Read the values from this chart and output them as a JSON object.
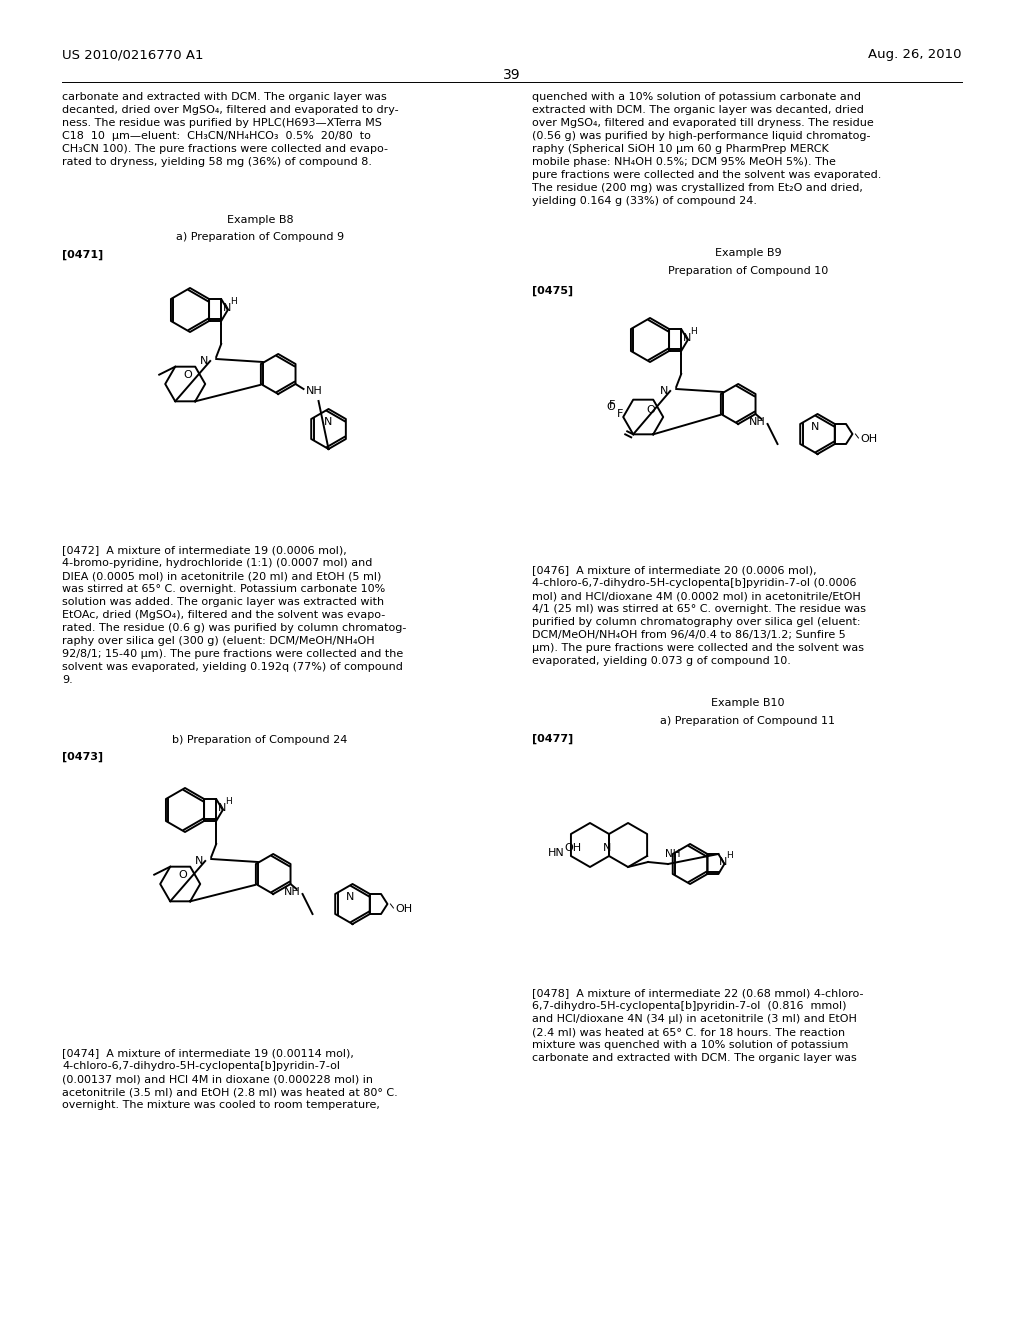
{
  "page_number": "39",
  "patent_number": "US 2010/0216770 A1",
  "patent_date": "Aug. 26, 2010",
  "background_color": "#ffffff",
  "text_color": "#000000",
  "left_col_top_text": "carbonate and extracted with DCM. The organic layer was\ndecanted, dried over MgSO₄, filtered and evaporated to dry-\nness. The residue was purified by HPLC(H693—XTerra MS\nC18  10  μm—eluent:  CH₃CN/NH₄HCO₃  0.5%  20/80  to\nCH₃CN 100). The pure fractions were collected and evapo-\nrated to dryness, yielding 58 mg (36%) of compound 8.",
  "left_example_b8": "Example B8",
  "left_prep_9": "a) Preparation of Compound 9",
  "left_ref_471": "[0471]",
  "left_para_472": "[0472]  A mixture of intermediate 19 (0.0006 mol),\n4-bromo-pyridine, hydrochloride (1:1) (0.0007 mol) and\nDIEA (0.0005 mol) in acetonitrile (20 ml) and EtOH (5 ml)\nwas stirred at 65° C. overnight. Potassium carbonate 10%\nsolution was added. The organic layer was extracted with\nEtOAc, dried (MgSO₄), filtered and the solvent was evapo-\nrated. The residue (0.6 g) was purified by column chromatog-\nraphy over silica gel (300 g) (eluent: DCM/MeOH/NH₄OH\n92/8/1; 15-40 μm). The pure fractions were collected and the\nsolvent was evaporated, yielding 0.192q (77%) of compound\n9.",
  "left_prep_24": "b) Preparation of Compound 24",
  "left_ref_473": "[0473]",
  "left_para_474": "[0474]  A mixture of intermediate 19 (0.00114 mol),\n4-chloro-6,7-dihydro-5H-cyclopenta[b]pyridin-7-ol\n(0.00137 mol) and HCl 4M in dioxane (0.000228 mol) in\nacetonitrile (3.5 ml) and EtOH (2.8 ml) was heated at 80° C.\novernight. The mixture was cooled to room temperature,",
  "right_col_top_text": "quenched with a 10% solution of potassium carbonate and\nextracted with DCM. The organic layer was decanted, dried\nover MgSO₄, filtered and evaporated till dryness. The residue\n(0.56 g) was purified by high-performance liquid chromatog-\nraphy (Spherical SiOH 10 μm 60 g PharmPrep MERCK\nmobile phase: NH₄OH 0.5%; DCM 95% MeOH 5%). The\npure fractions were collected and the solvent was evaporated.\nThe residue (200 mg) was crystallized from Et₂O and dried,\nyielding 0.164 g (33%) of compound 24.",
  "right_example_b9": "Example B9",
  "right_prep_10": "Preparation of Compound 10",
  "right_ref_475": "[0475]",
  "right_para_476": "[0476]  A mixture of intermediate 20 (0.0006 mol),\n4-chloro-6,7-dihydro-5H-cyclopenta[b]pyridin-7-ol (0.0006\nmol) and HCl/dioxane 4M (0.0002 mol) in acetonitrile/EtOH\n4/1 (25 ml) was stirred at 65° C. overnight. The residue was\npurified by column chromatography over silica gel (eluent:\nDCM/MeOH/NH₄OH from 96/4/0.4 to 86/13/1.2; Sunfire 5\nμm). The pure fractions were collected and the solvent was\nevaporated, yielding 0.073 g of compound 10.",
  "right_example_b10": "Example B10",
  "right_prep_11": "a) Preparation of Compound 11",
  "right_ref_477": "[0477]",
  "right_para_478": "[0478]  A mixture of intermediate 22 (0.68 mmol) 4-chloro-\n6,7-dihydro-5H-cyclopenta[b]pyridin-7-ol  (0.816  mmol)\nand HCl/dioxane 4N (34 μl) in acetonitrile (3 ml) and EtOH\n(2.4 ml) was heated at 65° C. for 18 hours. The reaction\nmixture was quenched with a 10% solution of potassium\ncarbonate and extracted with DCM. The organic layer was"
}
